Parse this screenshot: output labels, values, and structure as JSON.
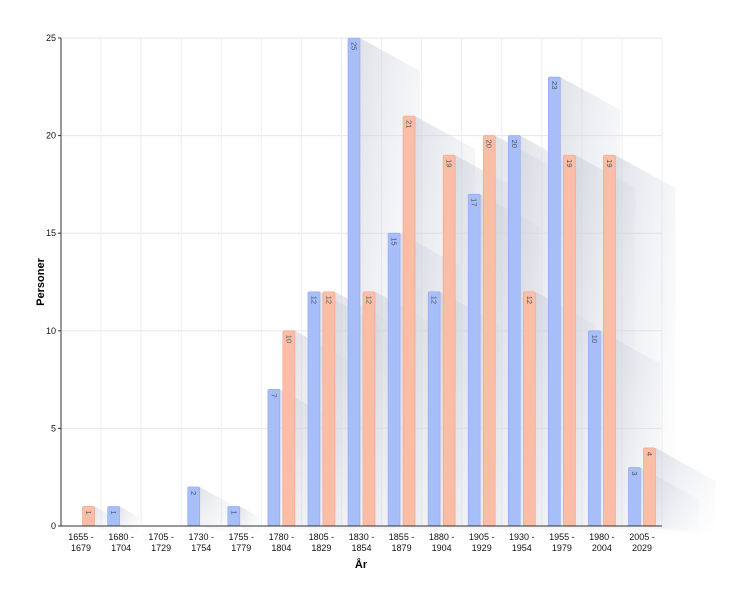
{
  "chart_data": {
    "type": "bar",
    "xlabel": "År",
    "ylabel": "Personer",
    "ylim": [
      0,
      25
    ],
    "yticks": [
      0,
      5,
      10,
      15,
      20,
      25
    ],
    "grid": true,
    "categories": [
      [
        "1655 -",
        "1679"
      ],
      [
        "1680 -",
        "1704"
      ],
      [
        "1705 -",
        "1729"
      ],
      [
        "1730 -",
        "1754"
      ],
      [
        "1755 -",
        "1779"
      ],
      [
        "1780 -",
        "1804"
      ],
      [
        "1805 -",
        "1829"
      ],
      [
        "1830 -",
        "1854"
      ],
      [
        "1855 -",
        "1879"
      ],
      [
        "1880 -",
        "1904"
      ],
      [
        "1905 -",
        "1929"
      ],
      [
        "1930 -",
        "1954"
      ],
      [
        "1955 -",
        "1979"
      ],
      [
        "1980 -",
        "2004"
      ],
      [
        "2005 -",
        "2029"
      ]
    ],
    "series": [
      {
        "color": "#a8bef9",
        "values": [
          0,
          1,
          0,
          2,
          1,
          7,
          12,
          25,
          15,
          12,
          17,
          20,
          23,
          10,
          3
        ]
      },
      {
        "color": "#fbbda6",
        "values": [
          1,
          0,
          0,
          0,
          0,
          10,
          12,
          12,
          21,
          19,
          20,
          12,
          19,
          19,
          4
        ]
      }
    ]
  }
}
